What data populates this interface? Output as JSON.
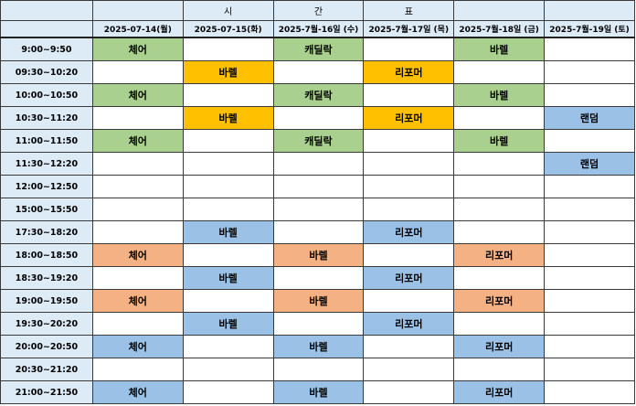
{
  "title_chars": [
    "시",
    "간",
    "표"
  ],
  "dates": [
    "2025-07-14(월)",
    "2025-07-15(화)",
    "2025-7월-16일 (수)",
    "2025-7월-17일 (목)",
    "2025-7월-18일 (금)",
    "2025-7월-19일 (토)"
  ],
  "colors": {
    "green": "#a9d08e",
    "orange": "#ffc000",
    "blue": "#9bc2e6",
    "salmon": "#f4b183",
    "header": "#ddebf7"
  },
  "rows": [
    {
      "time": "9:00~9:50",
      "cells": [
        [
          "체어",
          "green"
        ],
        null,
        [
          "캐딜락",
          "green"
        ],
        null,
        [
          "바렐",
          "green"
        ],
        null
      ]
    },
    {
      "time": "09:30~10:20",
      "cells": [
        null,
        [
          "바렐",
          "orange"
        ],
        null,
        [
          "리포머",
          "orange"
        ],
        null,
        null
      ]
    },
    {
      "time": "10:00~10:50",
      "cells": [
        [
          "체어",
          "green"
        ],
        null,
        [
          "캐딜락",
          "green"
        ],
        null,
        [
          "바렐",
          "green"
        ],
        null
      ]
    },
    {
      "time": "10:30~11:20",
      "cells": [
        null,
        [
          "바렐",
          "orange"
        ],
        null,
        [
          "리포머",
          "orange"
        ],
        null,
        [
          "랜덤",
          "blue"
        ]
      ]
    },
    {
      "time": "11:00~11:50",
      "cells": [
        [
          "체어",
          "green"
        ],
        null,
        [
          "캐딜락",
          "green"
        ],
        null,
        [
          "바렐",
          "green"
        ],
        null
      ]
    },
    {
      "time": "11:30~12:20",
      "cells": [
        null,
        null,
        null,
        null,
        null,
        [
          "랜덤",
          "blue"
        ]
      ]
    },
    {
      "time": "12:00~12:50",
      "cells": [
        null,
        null,
        null,
        null,
        null,
        null
      ]
    },
    {
      "time": "15:00~15:50",
      "cells": [
        null,
        null,
        null,
        null,
        null,
        null
      ]
    },
    {
      "time": "17:30~18:20",
      "cells": [
        null,
        [
          "바렐",
          "blue"
        ],
        null,
        [
          "리포머",
          "blue"
        ],
        null,
        null
      ]
    },
    {
      "time": "18:00~18:50",
      "cells": [
        [
          "체어",
          "salmon"
        ],
        null,
        [
          "바렐",
          "salmon"
        ],
        null,
        [
          "리포머",
          "salmon"
        ],
        null
      ]
    },
    {
      "time": "18:30~19:20",
      "cells": [
        null,
        [
          "바렐",
          "blue"
        ],
        null,
        [
          "리포머",
          "blue"
        ],
        null,
        null
      ]
    },
    {
      "time": "19:00~19:50",
      "cells": [
        [
          "체어",
          "salmon"
        ],
        null,
        [
          "바렐",
          "salmon"
        ],
        null,
        [
          "리포머",
          "salmon"
        ],
        null
      ]
    },
    {
      "time": "19:30~20:20",
      "cells": [
        null,
        [
          "바렐",
          "blue"
        ],
        null,
        [
          "리포머",
          "blue"
        ],
        null,
        null
      ]
    },
    {
      "time": "20:00~20:50",
      "cells": [
        [
          "체어",
          "blue"
        ],
        null,
        [
          "바렐",
          "blue"
        ],
        null,
        [
          "리포머",
          "blue"
        ],
        null
      ]
    },
    {
      "time": "20:30~21:20",
      "cells": [
        null,
        null,
        null,
        null,
        null,
        null
      ]
    },
    {
      "time": "21:00~21:50",
      "cells": [
        [
          "체어",
          "blue"
        ],
        null,
        [
          "바렐",
          "blue"
        ],
        null,
        [
          "리포머",
          "blue"
        ],
        null
      ]
    }
  ]
}
